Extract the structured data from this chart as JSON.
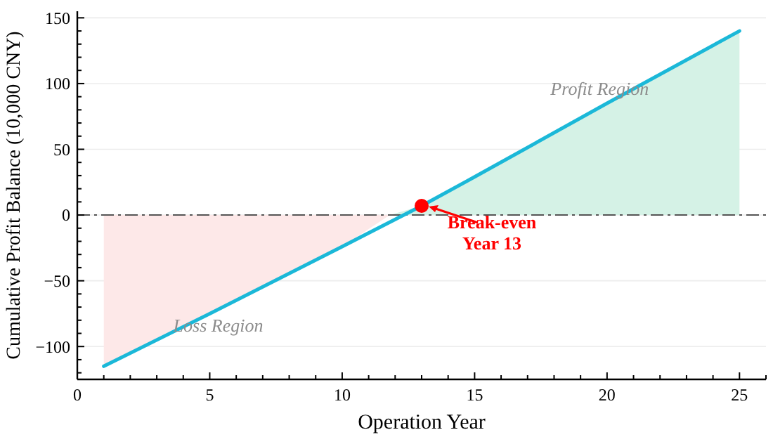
{
  "chart_data": {
    "type": "line",
    "xlabel": "Operation Year",
    "ylabel": "Cumulative Profit Balance (10,000 CNY)",
    "xlim": [
      0,
      26
    ],
    "ylim": [
      -125,
      155
    ],
    "xticks": [
      0,
      {
        "value": 1,
        "label": null
      },
      {
        "value": 2,
        "label": null
      },
      {
        "value": 3,
        "label": null
      },
      {
        "value": 4,
        "label": null
      },
      5,
      {
        "value": 6,
        "label": null
      },
      {
        "value": 7,
        "label": null
      },
      {
        "value": 8,
        "label": null
      },
      {
        "value": 9,
        "label": null
      },
      10,
      {
        "value": 11,
        "label": null
      },
      {
        "value": 12,
        "label": null
      },
      {
        "value": 13,
        "label": null
      },
      {
        "value": 14,
        "label": null
      },
      15,
      {
        "value": 16,
        "label": null
      },
      {
        "value": 17,
        "label": null
      },
      {
        "value": 18,
        "label": null
      },
      {
        "value": 19,
        "label": null
      },
      20,
      {
        "value": 21,
        "label": null
      },
      {
        "value": 22,
        "label": null
      },
      {
        "value": 23,
        "label": null
      },
      {
        "value": 24,
        "label": null
      },
      25,
      {
        "value": 26,
        "label": null
      }
    ],
    "yticks": [
      {
        "value": -120,
        "label": null
      },
      {
        "value": -110,
        "label": null
      },
      -100,
      {
        "value": -90,
        "label": null
      },
      {
        "value": -80,
        "label": null
      },
      {
        "value": -70,
        "label": null
      },
      {
        "value": -60,
        "label": null
      },
      -50,
      {
        "value": -40,
        "label": null
      },
      {
        "value": -30,
        "label": null
      },
      {
        "value": -20,
        "label": null
      },
      {
        "value": -10,
        "label": null
      },
      0,
      {
        "value": 10,
        "label": null
      },
      {
        "value": 20,
        "label": null
      },
      {
        "value": 30,
        "label": null
      },
      {
        "value": 40,
        "label": null
      },
      50,
      {
        "value": 60,
        "label": null
      },
      {
        "value": 70,
        "label": null
      },
      {
        "value": 80,
        "label": null
      },
      {
        "value": 90,
        "label": null
      },
      100,
      {
        "value": 110,
        "label": null
      },
      {
        "value": 120,
        "label": null
      },
      {
        "value": 130,
        "label": null
      },
      {
        "value": 140,
        "label": null
      },
      150
    ],
    "grid": "y",
    "marker": "none",
    "line_style": "solid",
    "series": [
      {
        "type": "area",
        "color": "#fde8e8",
        "x": [
          1,
          5,
          10,
          11.8
        ],
        "values": [
          -115,
          -75,
          -24,
          0
        ]
      },
      {
        "type": "area",
        "color": "#d5f2e6",
        "x": [
          11.8,
          13,
          15,
          20,
          25
        ],
        "values": [
          0,
          7,
          29,
          85,
          140
        ]
      },
      {
        "color": "#1bb8d8",
        "x": [
          1,
          5,
          10,
          13,
          15,
          20,
          25
        ],
        "values": [
          -115,
          -75,
          -24,
          7,
          29,
          85,
          140
        ]
      },
      {
        "type": "scatter",
        "color": "#ff0000",
        "marker": "circle",
        "x": [
          13
        ],
        "values": [
          7
        ]
      }
    ],
    "ref_lines": [
      {
        "axis": "y",
        "value": 0,
        "color": "#555555",
        "line_style": "dashed"
      }
    ],
    "annotations": [
      "Profit Region",
      "Loss Region",
      {
        "text": "Break-even\nYear 13",
        "x": 13,
        "y": 7
      }
    ]
  }
}
